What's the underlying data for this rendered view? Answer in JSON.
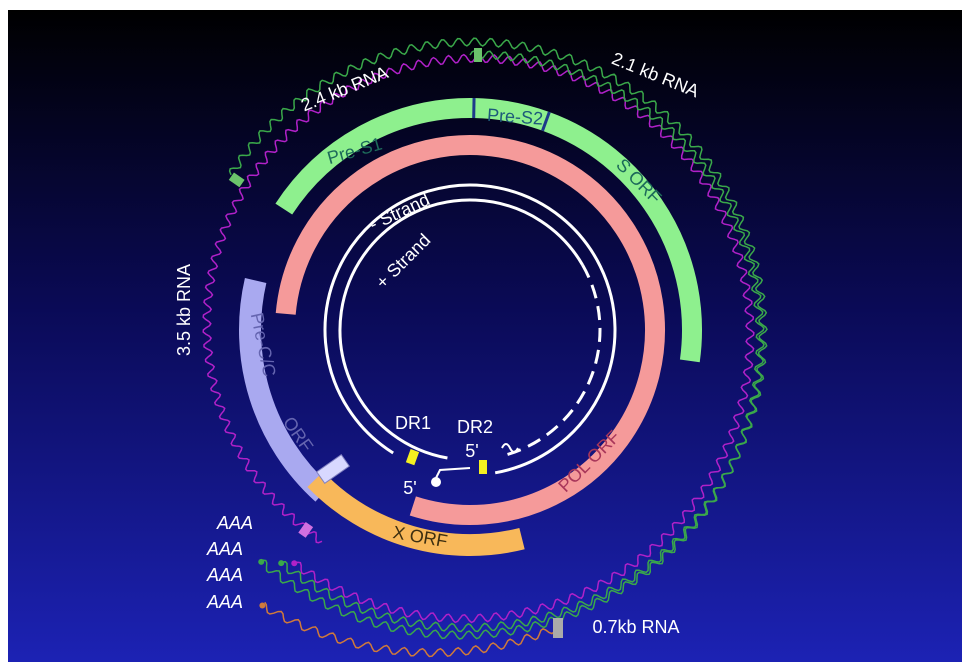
{
  "rna_labels": [
    "2.4 kb RNA",
    "2.1 kb RNA",
    "3.5 kb RNA",
    "0.7kb RNA"
  ],
  "orfs": {
    "pre_s1": "Pre-S1",
    "pre_s2": "Pre-S2",
    "s": "S  ORF",
    "pol": "POL ORF",
    "x": "X ORF",
    "pre_c": "Pre-C/C",
    "c_orf": "ORF"
  },
  "strands": {
    "minus": "- Strand",
    "plus": "+ Strand"
  },
  "repeats": {
    "dr1": "DR1",
    "dr2": "DR2"
  },
  "five_prime": [
    "5'",
    "5'"
  ],
  "poly_a": [
    "AAA",
    "AAA",
    "AAA",
    "AAA"
  ]
}
